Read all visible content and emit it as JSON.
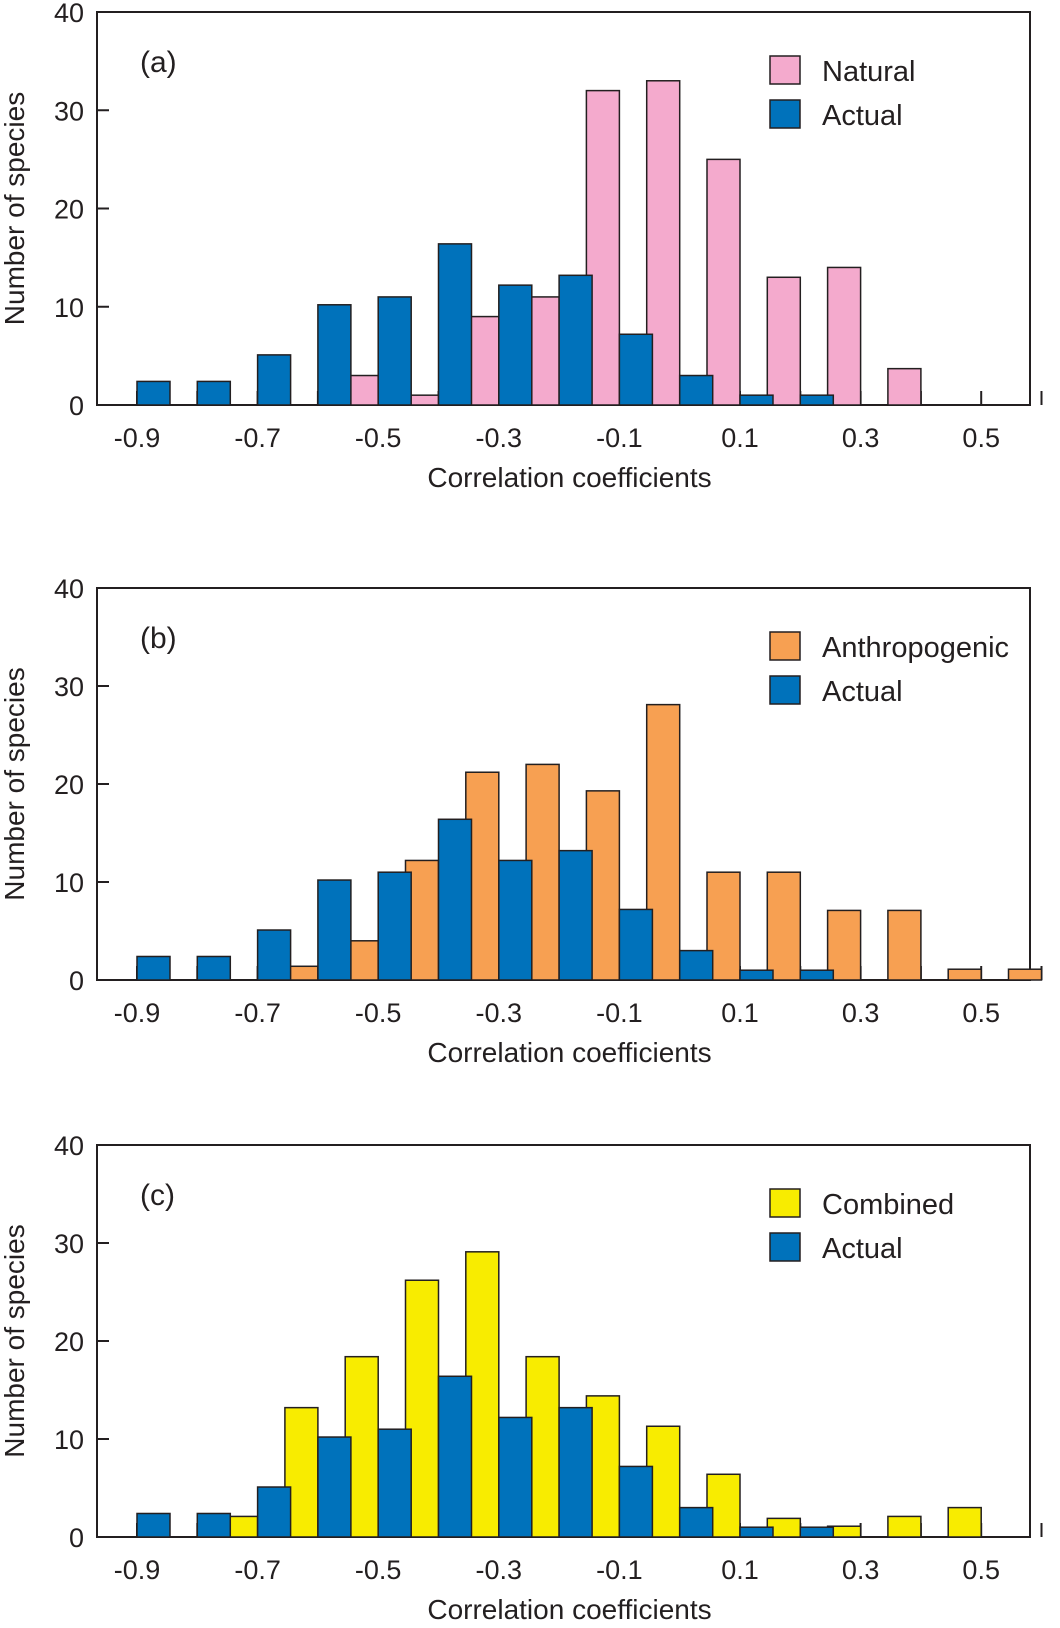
{
  "colors": {
    "natural": "#f4aacd",
    "anthropogenic": "#f7a052",
    "combined": "#f8ec00",
    "actual": "#0072bb",
    "stroke": "#231f20"
  },
  "chart_data": [
    {
      "type": "bar",
      "panel_label": "(a)",
      "xlabel": "Correlation coefficients",
      "ylabel": "Number of species",
      "ylim": [
        0,
        40
      ],
      "yticks": [
        0,
        10,
        20,
        30,
        40
      ],
      "xticks": [
        "-0.9",
        "-0.7",
        "-0.5",
        "-0.3",
        "-0.1",
        "0.1",
        "0.3",
        "0.5"
      ],
      "categories": [
        -0.9,
        -0.8,
        -0.7,
        -0.6,
        -0.5,
        -0.4,
        -0.3,
        -0.2,
        -0.1,
        0.0,
        0.1,
        0.2,
        0.3,
        0.4,
        0.5,
        0.6
      ],
      "legend_position": "top-right",
      "series": [
        {
          "name": "Natural",
          "color_key": "natural",
          "values": [
            0,
            0,
            0,
            0,
            3,
            1,
            9,
            11,
            32,
            33,
            25,
            13,
            14,
            3.7,
            0,
            0
          ]
        },
        {
          "name": "Actual",
          "color_key": "actual",
          "values": [
            2.4,
            2.4,
            5.1,
            10.2,
            11,
            16.4,
            12.2,
            13.2,
            7.2,
            3,
            1,
            1,
            0,
            0,
            0,
            0
          ]
        }
      ]
    },
    {
      "type": "bar",
      "panel_label": "(b)",
      "xlabel": "Correlation coefficients",
      "ylabel": "Number of species",
      "ylim": [
        0,
        40
      ],
      "yticks": [
        0,
        10,
        20,
        30,
        40
      ],
      "xticks": [
        "-0.9",
        "-0.7",
        "-0.5",
        "-0.3",
        "-0.1",
        "0.1",
        "0.3",
        "0.5"
      ],
      "categories": [
        -0.9,
        -0.8,
        -0.7,
        -0.6,
        -0.5,
        -0.4,
        -0.3,
        -0.2,
        -0.1,
        0.0,
        0.1,
        0.2,
        0.3,
        0.4,
        0.5,
        0.6
      ],
      "legend_position": "top-right",
      "series": [
        {
          "name": "Anthropogenic",
          "color_key": "anthropogenic",
          "values": [
            0,
            0,
            0,
            1.4,
            4,
            12.2,
            21.2,
            22,
            19.3,
            28.1,
            11,
            11,
            7.1,
            7.1,
            1.1,
            1.1
          ]
        },
        {
          "name": "Actual",
          "color_key": "actual",
          "values": [
            2.4,
            2.4,
            5.1,
            10.2,
            11,
            16.4,
            12.2,
            13.2,
            7.2,
            3,
            1,
            1,
            0,
            0,
            0,
            0
          ]
        }
      ]
    },
    {
      "type": "bar",
      "panel_label": "(c)",
      "xlabel": "Correlation coefficients",
      "ylabel": "Number of species",
      "ylim": [
        0,
        40
      ],
      "yticks": [
        0,
        10,
        20,
        30,
        40
      ],
      "xticks": [
        "-0.9",
        "-0.7",
        "-0.5",
        "-0.3",
        "-0.1",
        "0.1",
        "0.3",
        "0.5"
      ],
      "categories": [
        -0.9,
        -0.8,
        -0.7,
        -0.6,
        -0.5,
        -0.4,
        -0.3,
        -0.2,
        -0.1,
        0.0,
        0.1,
        0.2,
        0.3,
        0.4,
        0.5,
        0.6
      ],
      "legend_position": "top-right",
      "series": [
        {
          "name": "Combined",
          "color_key": "combined",
          "values": [
            0,
            0,
            2.1,
            13.2,
            18.4,
            26.2,
            29.1,
            18.4,
            14.4,
            11.3,
            6.4,
            1.9,
            1.1,
            2.1,
            3,
            0
          ]
        },
        {
          "name": "Actual",
          "color_key": "actual",
          "values": [
            2.4,
            2.4,
            5.1,
            10.2,
            11,
            16.4,
            12.2,
            13.2,
            7.2,
            3,
            1,
            1,
            0,
            0,
            0,
            0
          ]
        }
      ]
    }
  ]
}
